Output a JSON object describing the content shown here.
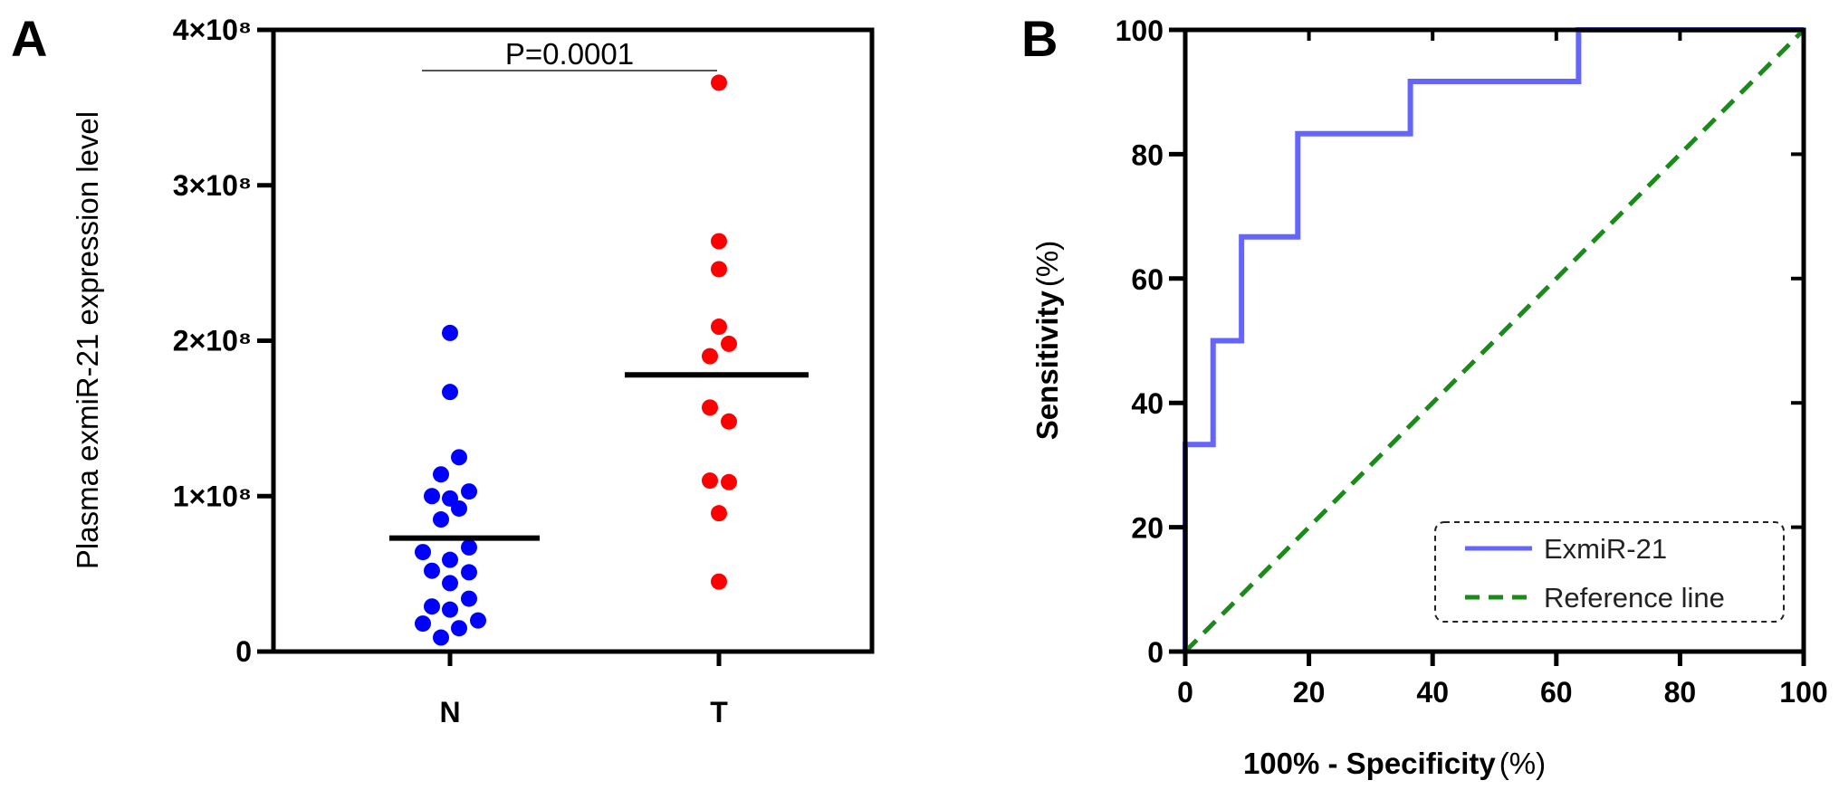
{
  "chart_data": [
    {
      "panel": "A",
      "type": "scatter",
      "title": "",
      "xlabel": "",
      "ylabel": "Plasma exmiR-21 expression level",
      "categories": [
        "N",
        "T"
      ],
      "ylim": [
        0,
        400000000
      ],
      "yticks": [
        0,
        100000000,
        200000000,
        300000000,
        400000000
      ],
      "ytick_labels": [
        "0",
        "1×10⁸",
        "2×10⁸",
        "3×10⁸",
        "4×10⁸"
      ],
      "series": [
        {
          "name": "N",
          "color": "#0000ff",
          "values": [
            205000000,
            167000000,
            125000000,
            114000000,
            100000000,
            103000000,
            98500000,
            92000000,
            85000000,
            67000000,
            64000000,
            59000000,
            52000000,
            51000000,
            44000000,
            34000000,
            29000000,
            27000000,
            20000000,
            18000000,
            15000000,
            9000000
          ],
          "mean": 73000000
        },
        {
          "name": "T",
          "color": "#ff0000",
          "values": [
            366000000,
            264000000,
            246000000,
            209000000,
            198000000,
            190000000,
            157000000,
            148000000,
            110000000,
            109000000,
            89000000,
            45000000
          ],
          "mean": 178000000
        }
      ],
      "annotations": [
        {
          "text": "P=0.0001",
          "between": [
            "N",
            "T"
          ]
        }
      ]
    },
    {
      "panel": "B",
      "type": "line",
      "title": "",
      "xlabel": "100% - Specificity",
      "xlabel_unit": "(%)",
      "ylabel": "Sensitivity",
      "ylabel_unit": "(%)",
      "xlim": [
        0,
        100
      ],
      "ylim": [
        0,
        100
      ],
      "xticks": [
        0,
        20,
        40,
        60,
        80,
        100
      ],
      "yticks": [
        0,
        20,
        40,
        60,
        80,
        100
      ],
      "legend_position": "bottom-right",
      "series": [
        {
          "name": "ExmiR-21",
          "color": "#6464ff",
          "style": "solid",
          "x": [
            0,
            0,
            4.5,
            4.5,
            9.1,
            9.1,
            18.2,
            18.2,
            36.4,
            36.4,
            63.6,
            63.6,
            100
          ],
          "y": [
            0,
            33.3,
            33.3,
            50,
            50,
            66.7,
            66.7,
            83.3,
            83.3,
            91.7,
            91.7,
            100,
            100
          ]
        },
        {
          "name": "Reference line",
          "color": "#1a8a1a",
          "style": "dashed",
          "x": [
            0,
            100
          ],
          "y": [
            0,
            100
          ]
        }
      ]
    }
  ],
  "panel_labels": [
    "A",
    "B"
  ]
}
